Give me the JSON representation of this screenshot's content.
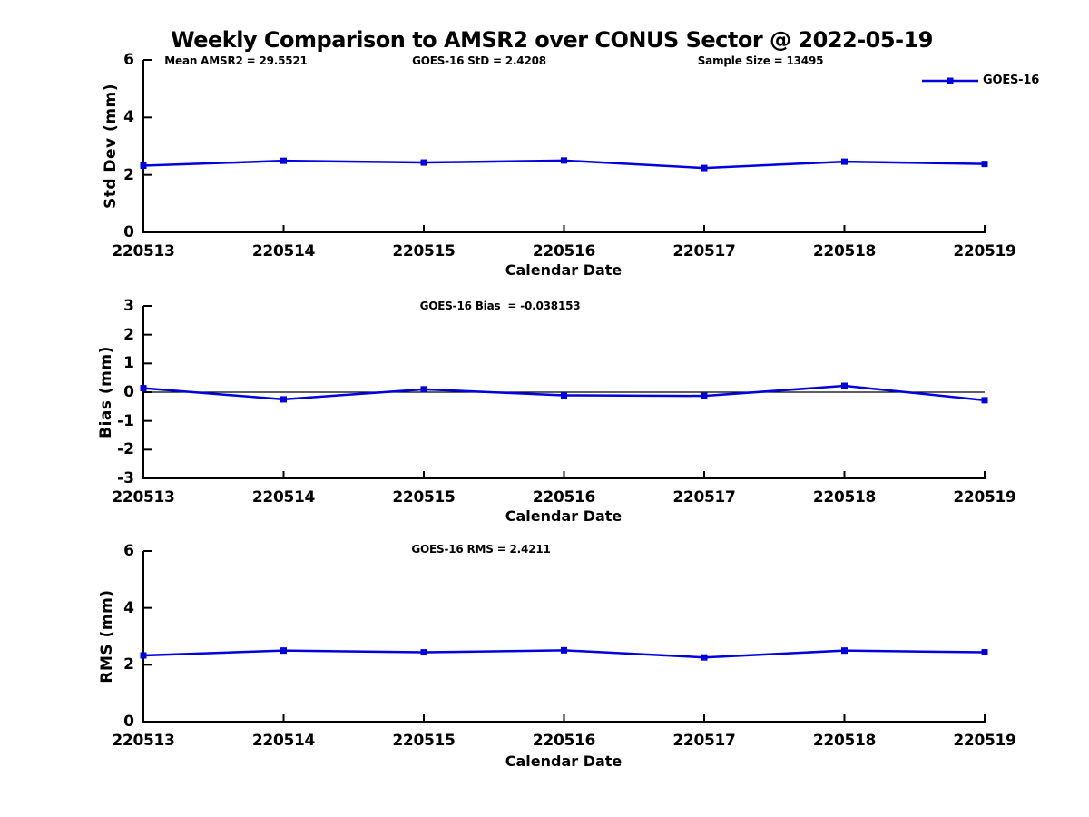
{
  "figure": {
    "title": "Weekly Comparison to AMSR2 over CONUS Sector @ 2022-05-19",
    "background_color": "#ffffff",
    "axis_color": "#000000",
    "accent_color": "#0000dd",
    "stats": {
      "mean_amsr2": 29.5521,
      "goes16_std": 2.4208,
      "goes16_bias": -0.038153,
      "goes16_rms": 2.4211,
      "sample_size": 13495
    }
  },
  "legend": {
    "label": "GOES-16",
    "marker": "filled-square",
    "line_color": "#0000dd",
    "position": "top-right"
  },
  "chart_data": [
    {
      "type": "line",
      "categories": [
        "220513",
        "220514",
        "220515",
        "220516",
        "220517",
        "220518",
        "220519"
      ],
      "series": [
        {
          "name": "GOES-16",
          "color": "#0000dd",
          "marker": "square",
          "values": [
            2.32,
            2.49,
            2.43,
            2.5,
            2.24,
            2.46,
            2.38
          ]
        }
      ],
      "xlabel": "Calendar Date",
      "ylabel": "Std Dev (mm)",
      "ylim": [
        0,
        6
      ],
      "yticks": [
        0,
        2,
        4,
        6
      ],
      "grid": false,
      "zero_line": false,
      "legend": [
        "GOES-16"
      ],
      "annotations": [
        "Mean AMSR2 = 29.5521",
        "GOES-16 StD = 2.4208",
        "Sample Size = 13495"
      ]
    },
    {
      "type": "line",
      "categories": [
        "220513",
        "220514",
        "220515",
        "220516",
        "220517",
        "220518",
        "220519"
      ],
      "series": [
        {
          "name": "GOES-16",
          "color": "#0000dd",
          "marker": "square",
          "values": [
            0.14,
            -0.25,
            0.1,
            -0.11,
            -0.13,
            0.22,
            -0.28
          ]
        }
      ],
      "xlabel": "Calendar Date",
      "ylabel": "Bias (mm)",
      "ylim": [
        -3,
        3
      ],
      "yticks": [
        -3,
        -2,
        -1,
        0,
        1,
        2,
        3
      ],
      "grid": false,
      "zero_line": true,
      "annotations": [
        "GOES-16 Bias  = -0.038153"
      ]
    },
    {
      "type": "line",
      "categories": [
        "220513",
        "220514",
        "220515",
        "220516",
        "220517",
        "220518",
        "220519"
      ],
      "series": [
        {
          "name": "GOES-16",
          "color": "#0000dd",
          "marker": "square",
          "values": [
            2.33,
            2.5,
            2.44,
            2.51,
            2.26,
            2.5,
            2.44
          ]
        }
      ],
      "xlabel": "Calendar Date",
      "ylabel": "RMS (mm)",
      "ylim": [
        0,
        6
      ],
      "yticks": [
        0,
        2,
        4,
        6
      ],
      "grid": false,
      "zero_line": false,
      "annotations": [
        "GOES-16 RMS = 2.4211"
      ]
    }
  ]
}
